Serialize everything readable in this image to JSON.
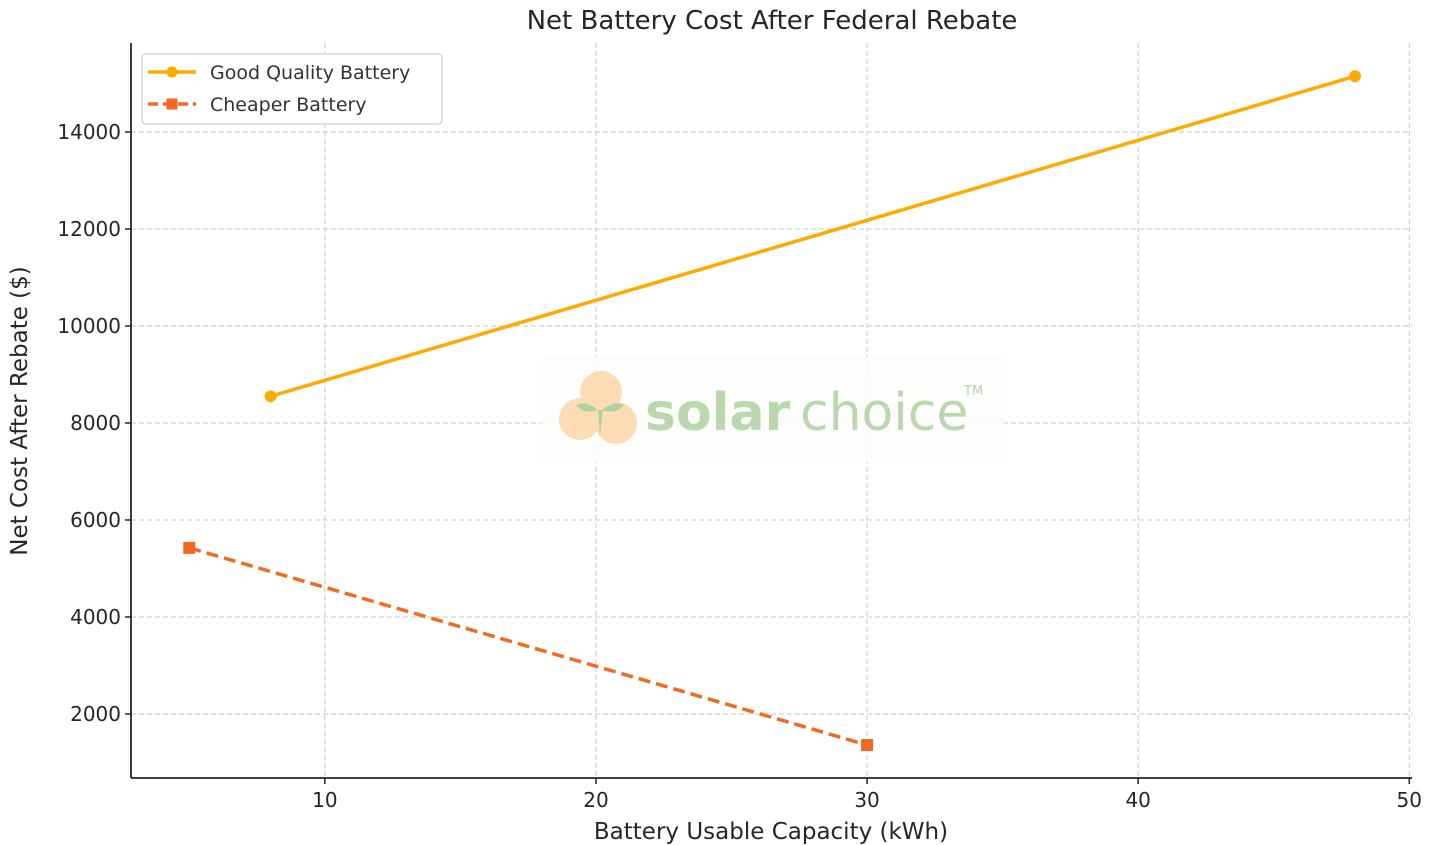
{
  "chart_data": {
    "type": "line",
    "title": "Net Battery Cost After Federal Rebate",
    "xlabel": "Battery Usable Capacity (kWh)",
    "ylabel": "Net Cost After Rebate ($)",
    "xlim": [
      2.85,
      50.1
    ],
    "ylim": [
      680,
      15835
    ],
    "xticks": [
      10,
      20,
      30,
      40,
      50
    ],
    "yticks": [
      2000,
      4000,
      6000,
      8000,
      10000,
      12000,
      14000
    ],
    "grid": true,
    "legend_position": "top-left",
    "series": [
      {
        "name": "Good Quality Battery",
        "x": [
          8,
          48
        ],
        "y": [
          8550,
          15150
        ],
        "color": "#FFAA00",
        "marker": "circle",
        "linestyle": "solid"
      },
      {
        "name": "Cheaper Battery",
        "x": [
          5,
          30
        ],
        "y": [
          5425,
          1360
        ],
        "color": "#F26A21",
        "marker": "square",
        "linestyle": "dashed"
      }
    ]
  },
  "watermark": {
    "text_bold": "solar",
    "text_light": "choice",
    "trademark": "TM"
  }
}
